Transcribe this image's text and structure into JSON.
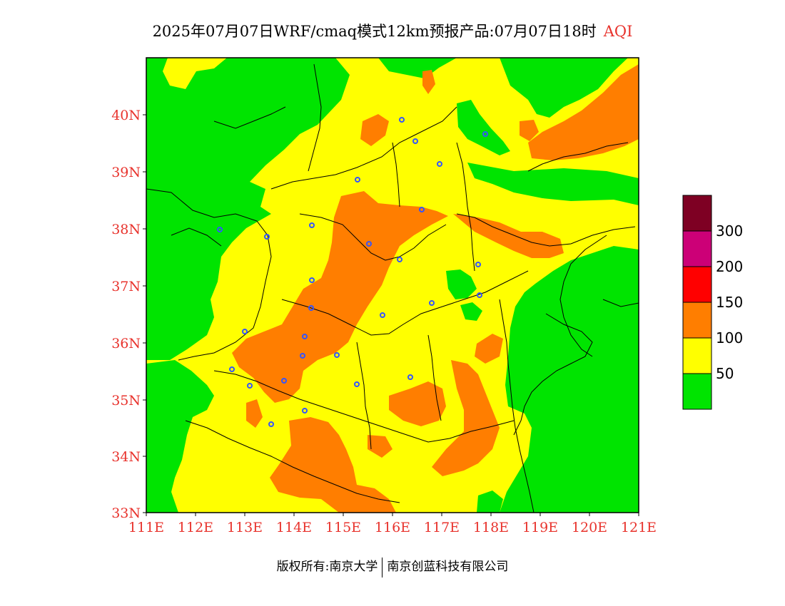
{
  "title": {
    "main": "2025年07月07日WRF/cmaq模式12km预报产品:07月07日18时",
    "variable": "AQI"
  },
  "map": {
    "lon_ticks": [
      "111E",
      "112E",
      "113E",
      "114E",
      "115E",
      "116E",
      "117E",
      "118E",
      "119E",
      "120E",
      "121E"
    ],
    "lat_ticks": [
      "40N",
      "39N",
      "38N",
      "37N",
      "36N",
      "35N",
      "34N",
      "33N"
    ],
    "colors": {
      "green": "#00e400",
      "yellow": "#ffff00",
      "orange": "#ff7e00",
      "red": "#ff0000",
      "magenta": "#cc0077",
      "maroon": "#7e0023",
      "boundary": "#000000",
      "city_marker": "#3355ff",
      "tick_text": "#e8332d"
    }
  },
  "legend": {
    "labels": [
      "300",
      "200",
      "150",
      "100",
      "50"
    ],
    "colors_top_to_bottom": [
      "#7e0023",
      "#cc0077",
      "#ff0000",
      "#ff7e00",
      "#ffff00",
      "#00e400"
    ]
  },
  "footer": {
    "left": "版权所有:南京大学",
    "right": "南京创蓝科技有限公司"
  }
}
